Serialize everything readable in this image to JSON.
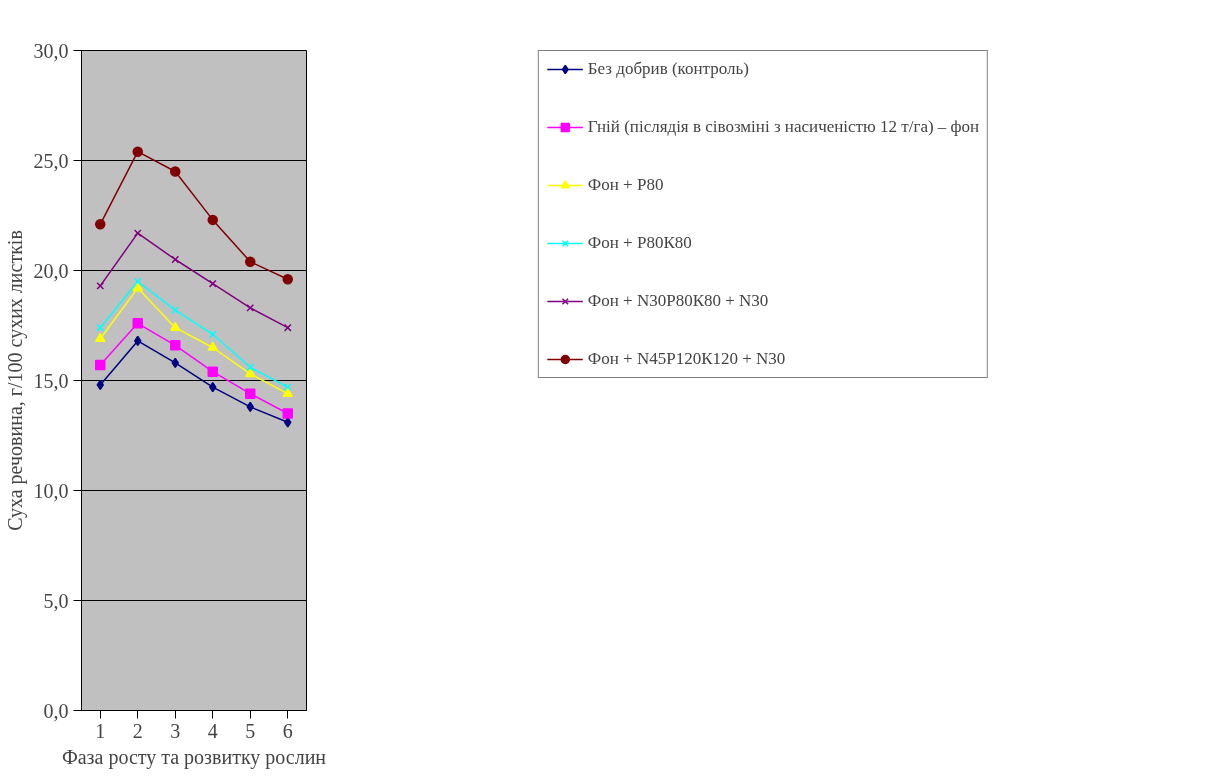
{
  "chart_data": {
    "type": "line",
    "xlabel": "Фаза росту та розвитку рослин",
    "ylabel": "Суха речовина, г/100 сухих листків",
    "categories": [
      "1",
      "2",
      "3",
      "4",
      "5",
      "6"
    ],
    "ylim": [
      0,
      30
    ],
    "yticks": [
      {
        "value": 0,
        "label": "0,0"
      },
      {
        "value": 5,
        "label": "5,0"
      },
      {
        "value": 10,
        "label": "10,0"
      },
      {
        "value": 15,
        "label": "15,0"
      },
      {
        "value": 20,
        "label": "20,0"
      },
      {
        "value": 25,
        "label": "25,0"
      },
      {
        "value": 30,
        "label": "30,0"
      }
    ],
    "grid": "y",
    "legend": "right",
    "series": [
      {
        "name": "Без добрив (контроль)",
        "color": "#000080",
        "marker": "diamond",
        "values": [
          14.8,
          16.8,
          15.8,
          14.7,
          13.8,
          13.1
        ]
      },
      {
        "name": "Гній (післядія в сівозміні з насиченістю 12 т/га) – фон",
        "color": "#ff00ff",
        "marker": "square",
        "values": [
          15.7,
          17.6,
          16.6,
          15.4,
          14.4,
          13.5
        ]
      },
      {
        "name": "Фон + Р80",
        "color": "#ffff00",
        "marker": "triangle",
        "values": [
          16.9,
          19.2,
          17.4,
          16.5,
          15.3,
          14.4
        ]
      },
      {
        "name": "Фон + Р80К80",
        "color": "#00ffff",
        "marker": "cross",
        "values": [
          17.4,
          19.5,
          18.2,
          17.1,
          15.6,
          14.7
        ]
      },
      {
        "name": "Фон + N30Р80К80 + N30",
        "color": "#800080",
        "marker": "cross",
        "values": [
          19.3,
          21.7,
          20.5,
          19.4,
          18.3,
          17.4
        ]
      },
      {
        "name": "Фон + N45Р120К120 + N30",
        "color": "#800000",
        "marker": "circle",
        "values": [
          22.1,
          25.4,
          24.5,
          22.3,
          20.4,
          19.6
        ]
      }
    ]
  }
}
